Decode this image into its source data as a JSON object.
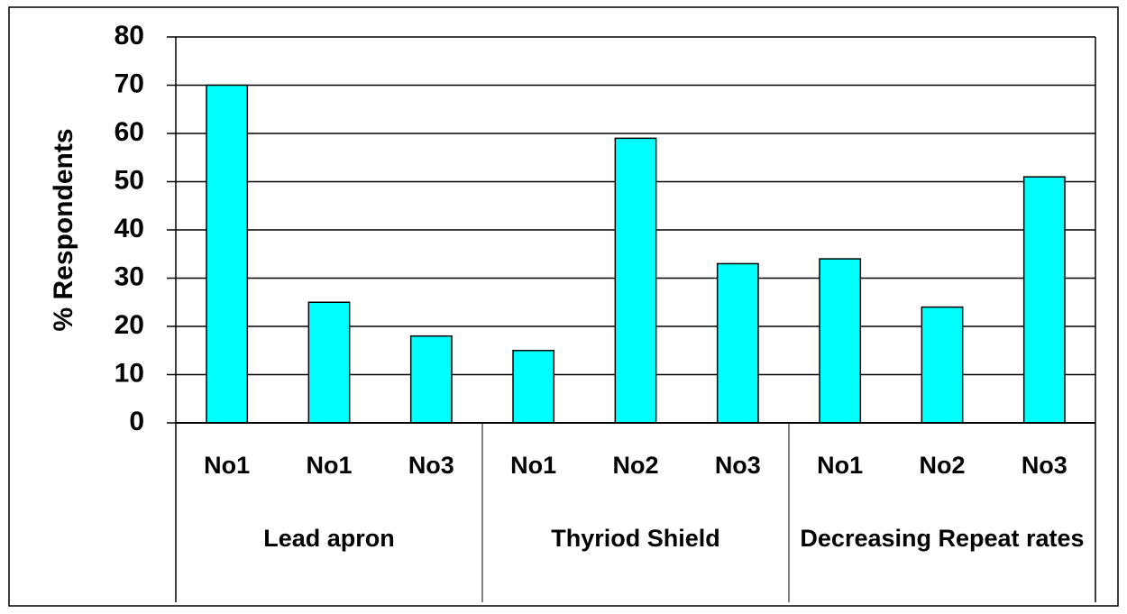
{
  "chart_data": {
    "type": "bar",
    "y_label": "% Respondents",
    "groups": [
      {
        "name": "Lead apron",
        "categories": [
          "No1",
          "No1",
          "No3"
        ],
        "values": [
          70,
          25,
          18
        ]
      },
      {
        "name": "Thyriod Shield",
        "categories": [
          "No1",
          "No2",
          "No3"
        ],
        "values": [
          15,
          59,
          33
        ]
      },
      {
        "name": "Decreasing Repeat rates",
        "categories": [
          "No1",
          "No2",
          "No3"
        ],
        "values": [
          34,
          24,
          51
        ]
      }
    ],
    "color": "#00ffff",
    "ylim": [
      0,
      80
    ],
    "yticks": [
      0,
      10,
      20,
      30,
      40,
      50,
      60,
      70,
      80
    ],
    "grid": true
  }
}
